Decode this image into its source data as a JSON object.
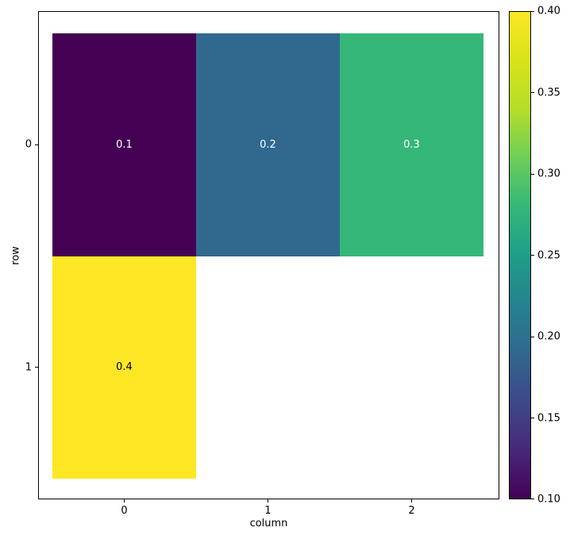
{
  "chart_data": {
    "type": "heatmap",
    "title": "",
    "xlabel": "column",
    "ylabel": "row",
    "x_tick_labels": [
      "0",
      "1",
      "2"
    ],
    "y_tick_labels": [
      "0",
      "1"
    ],
    "n_rows": 2,
    "n_cols": 3,
    "grid": "off",
    "cells": [
      {
        "row": 0,
        "col": 0,
        "value": "0.1",
        "color": "#440154",
        "text_color": "#ffffff"
      },
      {
        "row": 0,
        "col": 1,
        "value": "0.2",
        "color": "#31688e",
        "text_color": "#ffffff"
      },
      {
        "row": 0,
        "col": 2,
        "value": "0.3",
        "color": "#35b779",
        "text_color": "#ffffff"
      },
      {
        "row": 1,
        "col": 0,
        "value": "0.4",
        "color": "#fde725",
        "text_color": "#000000"
      }
    ],
    "missing_cells": [
      {
        "row": 1,
        "col": 1
      },
      {
        "row": 1,
        "col": 2
      }
    ],
    "colorbar": {
      "position": "right",
      "vmin": 0.1,
      "vmax": 0.4,
      "tick_labels": [
        "0.40",
        "0.35",
        "0.30",
        "0.25",
        "0.20",
        "0.15",
        "0.10"
      ],
      "tick_values": [
        0.4,
        0.35,
        0.3,
        0.25,
        0.2,
        0.15,
        0.1
      ],
      "colormap": "viridis",
      "gradient_stops_bottom_to_top": [
        "#440154",
        "#482878",
        "#3e4989",
        "#31688e",
        "#26828e",
        "#1f9e89",
        "#35b779",
        "#6ece58",
        "#b5de2b",
        "#d8e219",
        "#fde725"
      ]
    }
  }
}
